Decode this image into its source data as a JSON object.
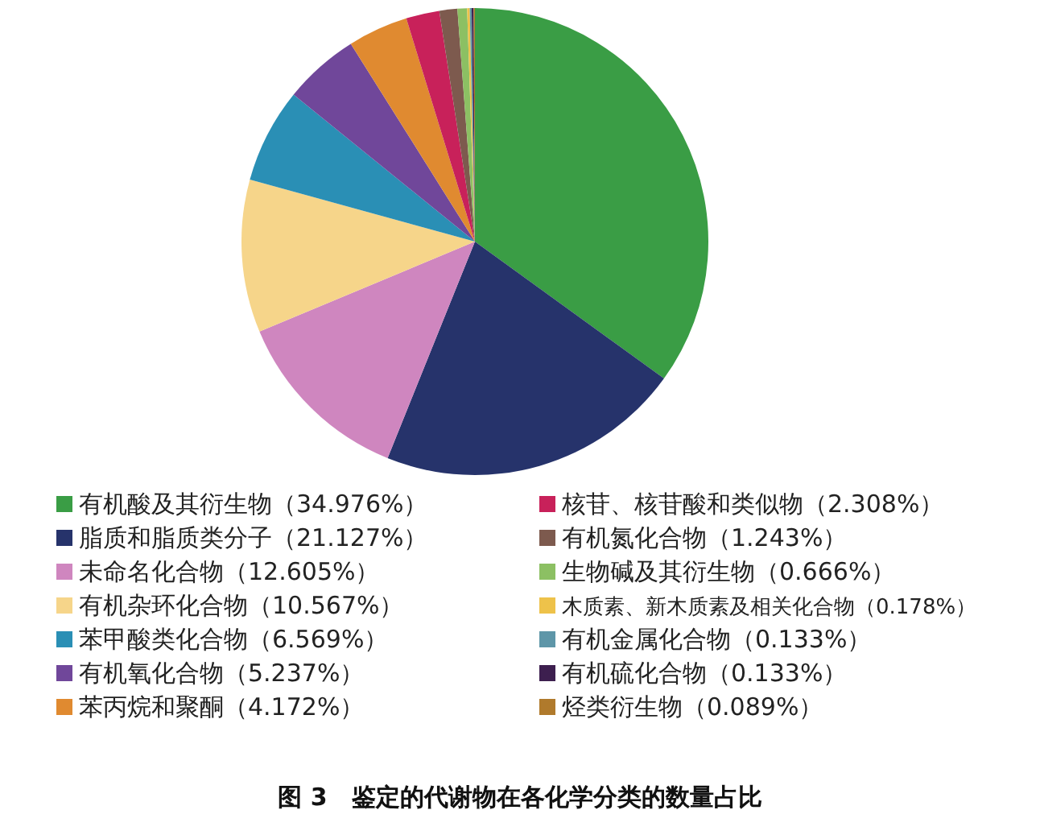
{
  "chart_data": {
    "type": "pie",
    "title": "图 3　鉴定的代谢物在各化学分类的数量占比",
    "legend": "bottom",
    "categories": [
      "有机酸及其衍生物（34.976%）",
      "脂质和脂质类分子（21.127%）",
      "未命名化合物（12.605%）",
      "有机杂环化合物（10.567%）",
      "苯甲酸类化合物（6.569%）",
      "有机氧化合物（5.237%）",
      "苯丙烷和聚酮（4.172%）",
      "核苷、核苷酸和类似物（2.308%）",
      "有机氮化合物（1.243%）",
      "生物碱及其衍生物（0.666%）",
      "木质素、新木质素及相关化合物（0.178%）",
      "有机金属化合物（0.133%）",
      "有机硫化合物（0.133%）",
      "烃类衍生物（0.089%）"
    ],
    "values": [
      34.976,
      21.127,
      12.605,
      10.567,
      6.569,
      5.237,
      4.172,
      2.308,
      1.243,
      0.666,
      0.178,
      0.133,
      0.133,
      0.089
    ],
    "colors": [
      "#3a9d45",
      "#26336b",
      "#cf86bf",
      "#f6d58a",
      "#2a8fb5",
      "#70479a",
      "#e08a30",
      "#c8215a",
      "#7d5a4e",
      "#8cc063",
      "#eec24a",
      "#5e96a8",
      "#3d1f4f",
      "#b07a2c"
    ]
  }
}
